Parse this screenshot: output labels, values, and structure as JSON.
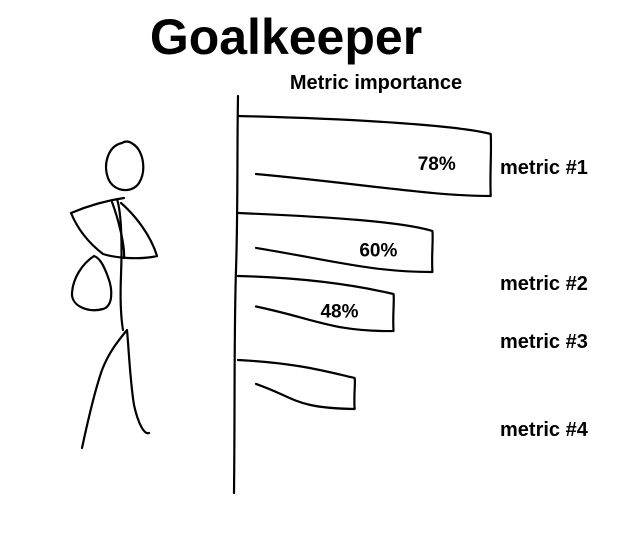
{
  "chart_data": {
    "type": "bar",
    "orientation": "horizontal",
    "title": "Goalkeeper",
    "subtitle": "Metric importance",
    "categories": [
      "metric #1",
      "metric #2",
      "metric #3",
      "metric #4"
    ],
    "values": [
      78,
      60,
      48,
      36
    ],
    "value_labels": [
      "78%",
      "60%",
      "48%",
      ""
    ],
    "xlim": [
      0,
      100
    ],
    "grid": false,
    "legend": "none",
    "colors": {
      "ink": "#000000",
      "background": "#ffffff"
    },
    "decoration": "hand-drawn-goalkeeper-stick-figure"
  }
}
